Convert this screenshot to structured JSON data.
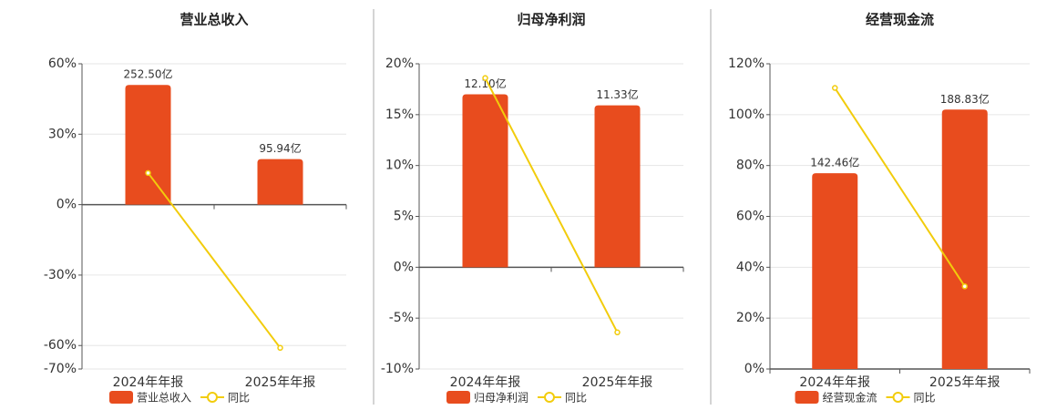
{
  "chart_data": [
    {
      "type": "bar-line",
      "title": "营业总收入",
      "categories": [
        "2024年年报",
        "2025年年报"
      ],
      "series": [
        {
          "name": "营业总收入",
          "color": "#e84c1e",
          "values": [
            252.5,
            95.94
          ],
          "value_labels": [
            "252.50亿",
            "95.94亿"
          ]
        },
        {
          "name": "同比",
          "color": "#f2cc0c",
          "values": [
            13.5,
            -61
          ]
        }
      ],
      "ylim": [
        -70,
        60
      ],
      "yticks": [
        {
          "value": -70,
          "label": "-70%"
        },
        {
          "value": -60,
          "label": "-60%"
        },
        {
          "value": -30,
          "label": "-30%"
        },
        {
          "value": 0,
          "label": "0%"
        },
        {
          "value": 30,
          "label": "30%"
        },
        {
          "value": 60,
          "label": "60%"
        }
      ],
      "grid": true
    },
    {
      "type": "bar-line",
      "title": "归母净利润",
      "categories": [
        "2024年年报",
        "2025年年报"
      ],
      "series": [
        {
          "name": "归母净利润",
          "color": "#e84c1e",
          "values": [
            12.1,
            11.33
          ],
          "value_labels": [
            "12.10亿",
            "11.33亿"
          ]
        },
        {
          "name": "同比",
          "color": "#f2cc0c",
          "values": [
            18.6,
            -6.4
          ]
        }
      ],
      "ylim": [
        -10,
        20
      ],
      "yticks": [
        {
          "value": -10,
          "label": "-10%"
        },
        {
          "value": -5,
          "label": "-5%"
        },
        {
          "value": 0,
          "label": "0%"
        },
        {
          "value": 5,
          "label": "5%"
        },
        {
          "value": 10,
          "label": "10%"
        },
        {
          "value": 15,
          "label": "15%"
        },
        {
          "value": 20,
          "label": "20%"
        }
      ],
      "grid": true
    },
    {
      "type": "bar-line",
      "title": "经营现金流",
      "categories": [
        "2024年年报",
        "2025年年报"
      ],
      "series": [
        {
          "name": "经营现金流",
          "color": "#e84c1e",
          "values": [
            142.46,
            188.83
          ],
          "value_labels": [
            "142.46亿",
            "188.83亿"
          ]
        },
        {
          "name": "同比",
          "color": "#f2cc0c",
          "values": [
            110.5,
            32.5
          ]
        }
      ],
      "ylim": [
        0,
        120
      ],
      "yticks": [
        {
          "value": 0,
          "label": "0%"
        },
        {
          "value": 20,
          "label": "20%"
        },
        {
          "value": 40,
          "label": "40%"
        },
        {
          "value": 60,
          "label": "60%"
        },
        {
          "value": 80,
          "label": "80%"
        },
        {
          "value": 100,
          "label": "100%"
        },
        {
          "value": 120,
          "label": "120%"
        }
      ],
      "grid": true
    }
  ]
}
